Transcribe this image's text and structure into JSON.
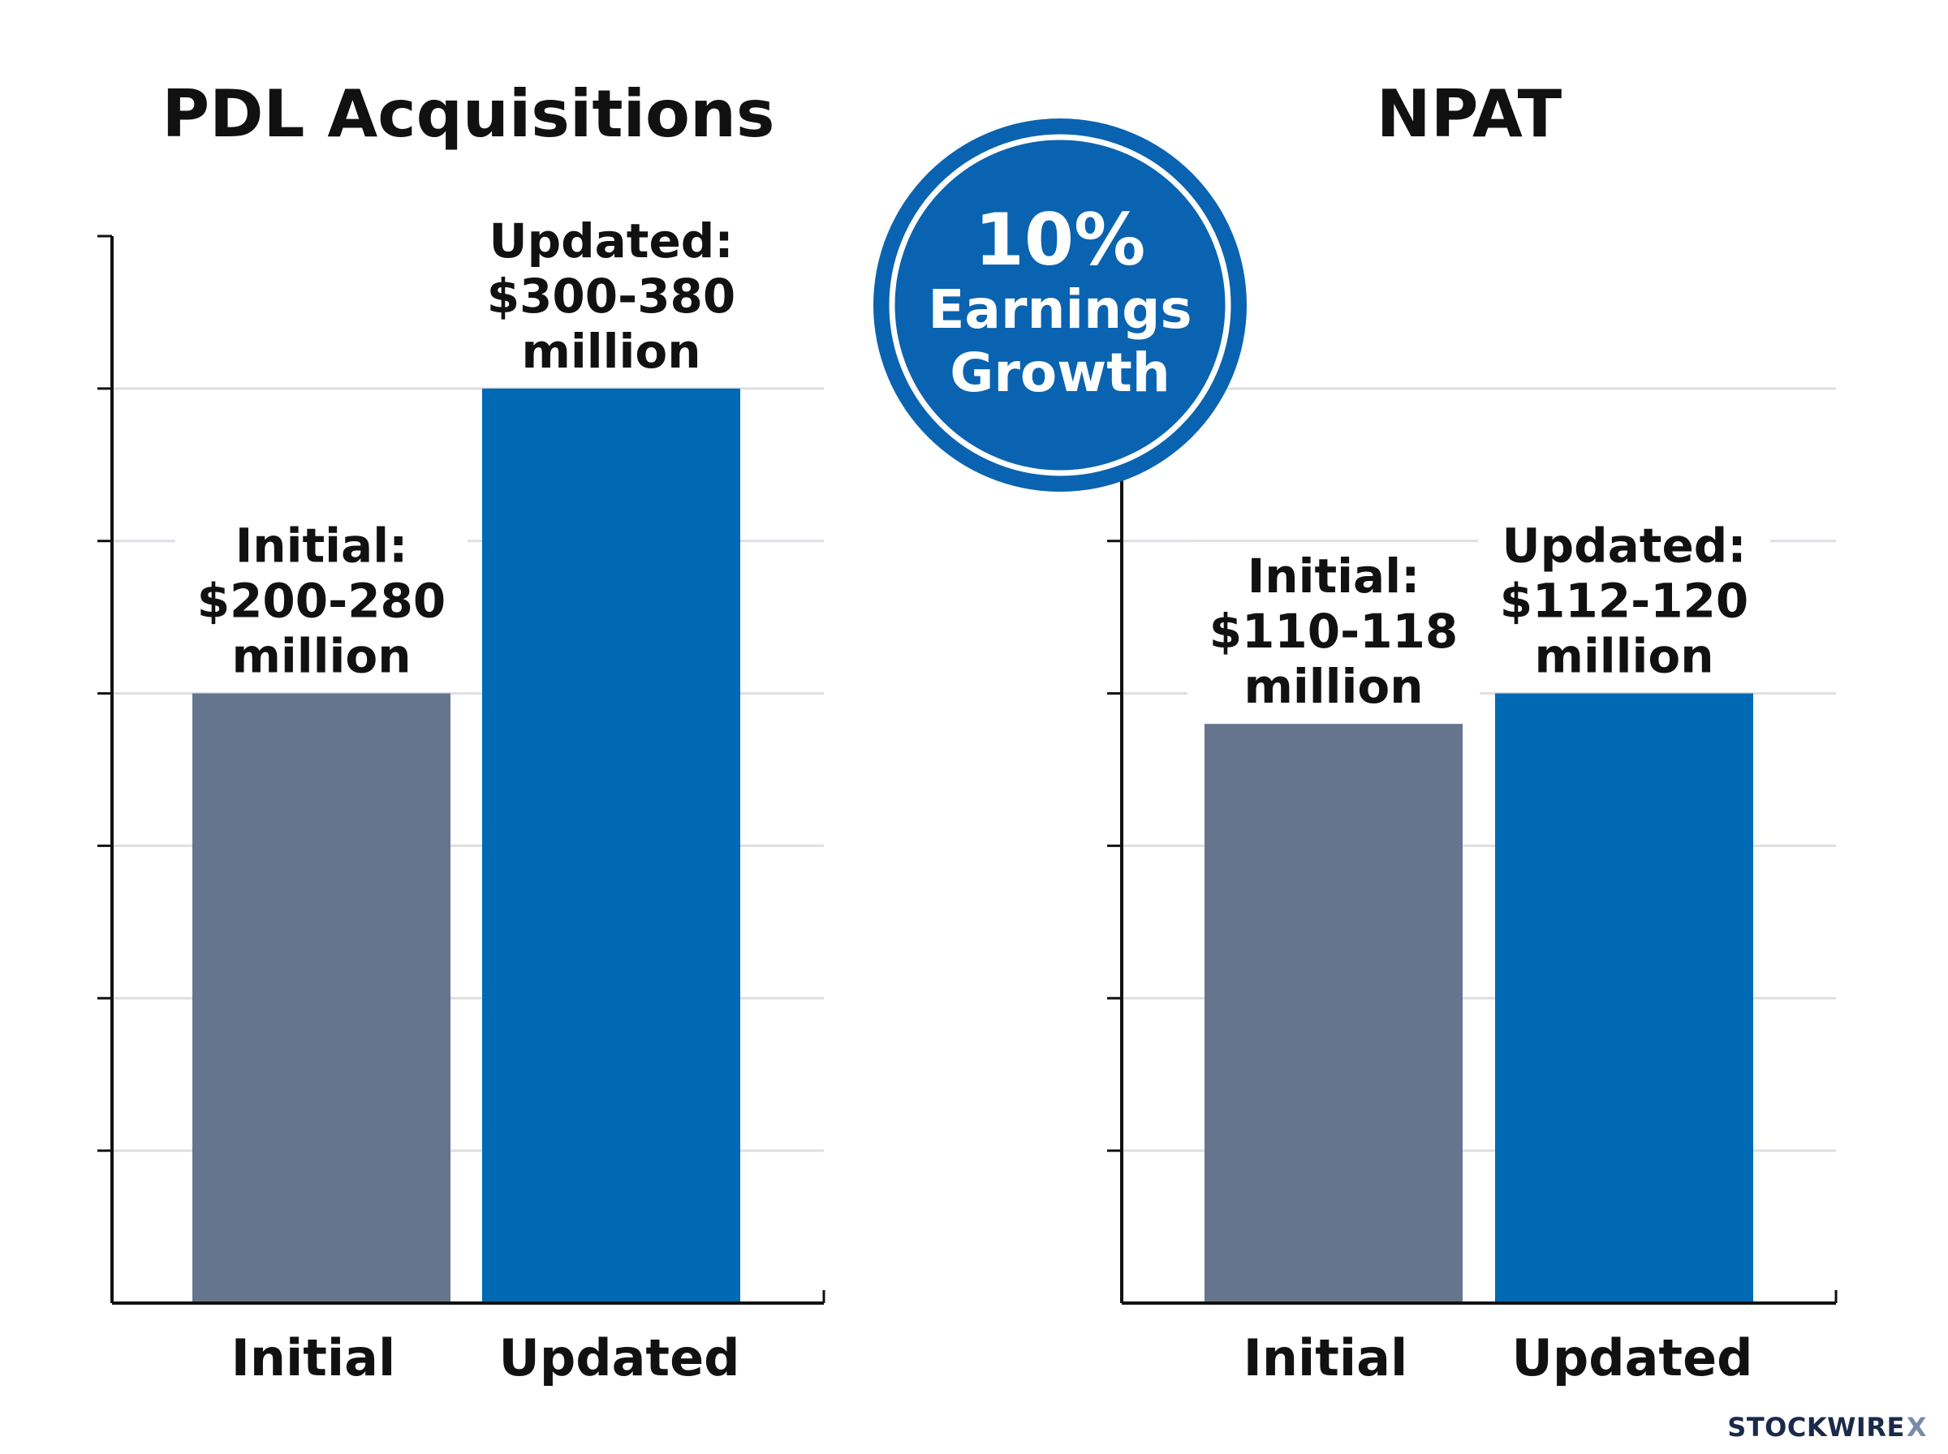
{
  "chart_data": [
    {
      "type": "bar",
      "title": "PDL Acquisitions",
      "categories": [
        "Initial",
        "Updated"
      ],
      "values": [
        4,
        6
      ],
      "data_labels": [
        [
          "Initial:",
          "$200-280",
          "million"
        ],
        [
          "Updated:",
          "$300-380",
          "million"
        ]
      ],
      "ylim": [
        0,
        7
      ],
      "grid": true,
      "colors": [
        "#66758e",
        "#0069b4"
      ]
    },
    {
      "type": "bar",
      "title": "NPAT",
      "categories": [
        "Initial",
        "Updated"
      ],
      "values": [
        3.8,
        4
      ],
      "data_labels": [
        [
          "Initial:",
          "$110-118",
          "million"
        ],
        [
          "Updated:",
          "$112-120",
          "million"
        ]
      ],
      "ylim": [
        0,
        7
      ],
      "grid": true,
      "colors": [
        "#66758e",
        "#0069b4"
      ]
    }
  ],
  "badge": {
    "line1": "10%",
    "line2": "Earnings",
    "line3": "Growth",
    "color": "#0a63b0"
  },
  "brand": {
    "name": "STOCKWIRE",
    "mark": "X"
  }
}
